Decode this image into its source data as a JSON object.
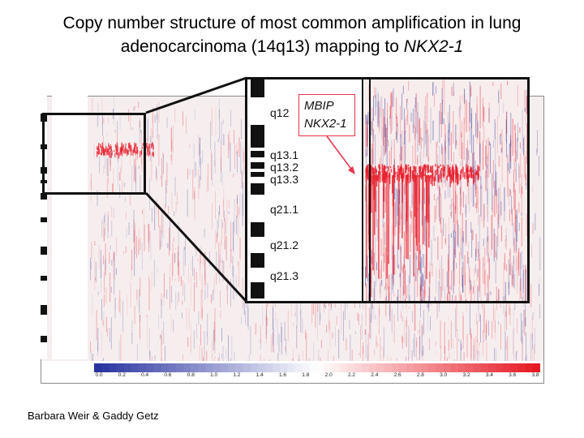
{
  "title": {
    "line1": "Copy number structure of most common amplification in lung",
    "line2_prefix": "adenocarcinoma (14q13) mapping to ",
    "line2_gene": "NKX2-1"
  },
  "credit": "Barbara Weir & Gaddy Getz",
  "zoom_panel": {
    "band_labels": [
      "q12",
      "q13.1",
      "q13.2",
      "q13.3",
      "q21.1",
      "q21.2",
      "q21.3"
    ],
    "callout_genes": [
      "MBIP",
      "NKX2-1"
    ]
  },
  "colorbar": {
    "tick_labels": [
      "0.0",
      "0.2",
      "0.4",
      "0.6",
      "0.8",
      "1.0",
      "1.2",
      "1.4",
      "1.6",
      "1.8",
      "2.0",
      "2.2",
      "2.4",
      "2.6",
      "2.8",
      "3.0",
      "3.2",
      "3.4",
      "3.6",
      "3.8"
    ]
  },
  "colors": {
    "amplification": "#e8202e",
    "deletion": "#3a3fa0",
    "neutral": "#f4eeee",
    "callout_border": "#e8334a"
  }
}
